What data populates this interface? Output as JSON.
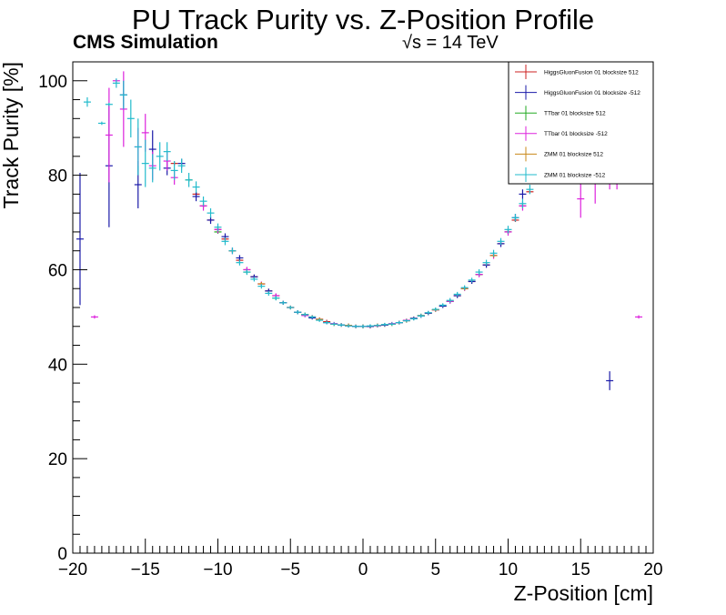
{
  "chart_data": {
    "type": "scatter",
    "title": "PU Track Purity vs. Z-Position Profile",
    "experiment_label": "CMS Simulation",
    "energy_label": "√s = 14 TeV",
    "xlabel": "Z-Position [cm]",
    "ylabel": "Track Purity [%]",
    "xlim": [
      -20,
      20
    ],
    "ylim": [
      0,
      104
    ],
    "xticks": [
      -20,
      -15,
      -10,
      -5,
      0,
      5,
      10,
      15,
      20
    ],
    "xtick_labels": [
      "−20",
      "−15",
      "−10",
      "−5",
      "0",
      "5",
      "10",
      "15",
      "20"
    ],
    "yticks": [
      0,
      20,
      40,
      60,
      80,
      100
    ],
    "ytick_labels": [
      "0",
      "20",
      "40",
      "60",
      "80",
      "100"
    ],
    "grid": false,
    "legend_position": "top-right",
    "series": [
      {
        "name": "HiggsGluonFusion 01 blocksize 512",
        "color": "#cc2222",
        "points": [
          [
            -13.0,
            82.5
          ],
          [
            -11.5,
            76.0
          ],
          [
            -11.0,
            73.5
          ],
          [
            -10.5,
            70.5
          ],
          [
            -10.0,
            68.5
          ],
          [
            -9.5,
            66.5
          ],
          [
            -9.0,
            64.0
          ],
          [
            -8.5,
            62.0
          ],
          [
            -8.0,
            60.0
          ],
          [
            -7.5,
            58.5
          ],
          [
            -7.0,
            57.0
          ],
          [
            -6.5,
            55.5
          ],
          [
            -6.0,
            54.5
          ],
          [
            -5.5,
            53.0
          ],
          [
            -5.0,
            52.0
          ],
          [
            -4.5,
            51.0
          ],
          [
            -4.0,
            50.5
          ],
          [
            -3.5,
            50.0
          ],
          [
            -3.0,
            49.5
          ],
          [
            -2.5,
            49.0
          ],
          [
            -2.0,
            48.5
          ],
          [
            -1.5,
            48.3
          ],
          [
            -1.0,
            48.2
          ],
          [
            -0.5,
            48.0
          ],
          [
            0.0,
            48.0
          ],
          [
            0.5,
            48.0
          ],
          [
            1.0,
            48.2
          ],
          [
            1.5,
            48.3
          ],
          [
            2.0,
            48.5
          ],
          [
            2.5,
            48.8
          ],
          [
            3.0,
            49.2
          ],
          [
            3.5,
            49.7
          ],
          [
            4.0,
            50.2
          ],
          [
            4.5,
            50.8
          ],
          [
            5.0,
            51.5
          ],
          [
            5.5,
            52.3
          ],
          [
            6.0,
            53.3
          ],
          [
            6.5,
            54.5
          ],
          [
            7.0,
            56.0
          ],
          [
            7.5,
            57.5
          ],
          [
            8.0,
            59.0
          ],
          [
            8.5,
            61.0
          ],
          [
            9.0,
            63.0
          ],
          [
            9.5,
            65.5
          ],
          [
            10.0,
            68.0
          ],
          [
            10.5,
            70.5
          ],
          [
            11.0,
            73.5
          ],
          [
            11.5,
            76.5
          ]
        ]
      },
      {
        "name": "HiggsGluonFusion 01 blocksize -512",
        "color": "#1a1aa8",
        "points": [
          [
            -19.5,
            66.5,
            14.0
          ],
          [
            -17.5,
            82.0,
            13.0
          ],
          [
            -16.5,
            97.0,
            3.0
          ],
          [
            -15.5,
            78.0,
            5.0
          ],
          [
            -14.5,
            85.5,
            4.0
          ],
          [
            -13.5,
            81.5,
            1.5
          ],
          [
            -12.5,
            82.5,
            1.0
          ],
          [
            -11.5,
            75.5,
            1.0
          ],
          [
            -10.5,
            70.5,
            0.8
          ],
          [
            -9.5,
            67.0,
            0.7
          ],
          [
            -8.5,
            62.5,
            0.6
          ],
          [
            -7.5,
            58.5,
            0.5
          ],
          [
            -6.5,
            55.5,
            0.5
          ],
          [
            -5.5,
            53.0,
            0.4
          ],
          [
            -4.5,
            51.0,
            0.4
          ],
          [
            -3.5,
            49.8,
            0.3
          ],
          [
            -2.5,
            48.8,
            0.3
          ],
          [
            -1.5,
            48.3,
            0.3
          ],
          [
            -0.5,
            48.0,
            0.3
          ],
          [
            0.5,
            48.0,
            0.3
          ],
          [
            1.5,
            48.3,
            0.3
          ],
          [
            2.5,
            48.8,
            0.3
          ],
          [
            3.5,
            49.7,
            0.3
          ],
          [
            4.5,
            50.8,
            0.4
          ],
          [
            5.5,
            52.3,
            0.4
          ],
          [
            6.5,
            54.5,
            0.5
          ],
          [
            7.5,
            57.5,
            0.5
          ],
          [
            8.5,
            61.0,
            0.6
          ],
          [
            9.5,
            65.5,
            0.7
          ],
          [
            10.5,
            71.0,
            0.8
          ],
          [
            11.0,
            76.0,
            1.0
          ],
          [
            17.0,
            36.5,
            2.0
          ]
        ]
      },
      {
        "name": "TTbar 01 blocksize 512",
        "color": "#22aa22",
        "points": [
          [
            -12.0,
            79.0
          ],
          [
            -10.0,
            68.0
          ],
          [
            -8.0,
            59.5
          ],
          [
            -6.0,
            54.0
          ],
          [
            -4.0,
            50.5
          ],
          [
            -2.0,
            48.5
          ],
          [
            0.0,
            48.0
          ],
          [
            2.0,
            48.5
          ],
          [
            4.0,
            50.3
          ],
          [
            6.0,
            53.3
          ],
          [
            8.0,
            59.0
          ],
          [
            10.0,
            68.0
          ]
        ]
      },
      {
        "name": "TTbar 01 blocksize -512",
        "color": "#dd22dd",
        "points": [
          [
            -18.5,
            50.0,
            0.0
          ],
          [
            -17.5,
            88.5,
            10.0
          ],
          [
            -17.0,
            100.0,
            0.0
          ],
          [
            -16.5,
            94.0,
            8.0
          ],
          [
            -15.5,
            86.0,
            4.0
          ],
          [
            -15.0,
            89.0,
            4.0
          ],
          [
            -14.5,
            82.0,
            3.0
          ],
          [
            -13.5,
            83.0,
            2.0
          ],
          [
            -13.0,
            79.5,
            1.5
          ],
          [
            -11.0,
            73.5,
            1.0
          ],
          [
            -10.0,
            68.5,
            0.8
          ],
          [
            -9.0,
            64.0,
            0.7
          ],
          [
            -8.0,
            60.0,
            0.6
          ],
          [
            -7.0,
            57.0,
            0.5
          ],
          [
            -6.0,
            54.5,
            0.5
          ],
          [
            -5.0,
            52.0,
            0.4
          ],
          [
            -4.0,
            50.3,
            0.4
          ],
          [
            -3.0,
            49.5,
            0.3
          ],
          [
            -2.0,
            48.6,
            0.3
          ],
          [
            -1.0,
            48.1,
            0.3
          ],
          [
            0.0,
            48.0,
            0.3
          ],
          [
            1.0,
            48.1,
            0.3
          ],
          [
            2.0,
            48.6,
            0.3
          ],
          [
            3.0,
            49.3,
            0.3
          ],
          [
            4.0,
            50.2,
            0.4
          ],
          [
            5.0,
            51.5,
            0.4
          ],
          [
            6.0,
            53.3,
            0.5
          ],
          [
            7.0,
            56.0,
            0.5
          ],
          [
            8.0,
            59.0,
            0.6
          ],
          [
            9.0,
            63.0,
            0.7
          ],
          [
            10.0,
            68.0,
            0.8
          ],
          [
            11.0,
            73.5,
            1.0
          ],
          [
            15.0,
            75.0,
            4.0
          ],
          [
            16.0,
            80.0,
            6.0
          ],
          [
            17.0,
            80.0,
            3.0
          ],
          [
            17.5,
            80.0,
            3.0
          ],
          [
            19.0,
            50.0,
            0.0
          ]
        ]
      },
      {
        "name": "ZMM 01 blocksize 512",
        "color": "#c8881a",
        "points": [
          [
            -9.0,
            64.0
          ],
          [
            -7.0,
            57.0
          ],
          [
            -5.0,
            52.0
          ],
          [
            -3.0,
            49.5
          ],
          [
            -1.0,
            48.2
          ],
          [
            1.0,
            48.2
          ],
          [
            3.0,
            49.2
          ],
          [
            5.0,
            51.5
          ],
          [
            7.0,
            56.0
          ],
          [
            9.0,
            63.0
          ]
        ]
      },
      {
        "name": "ZMM 01 blocksize -512",
        "color": "#22bbcc",
        "points": [
          [
            -19.0,
            95.5,
            1.0
          ],
          [
            -18.0,
            91.0,
            0.0
          ],
          [
            -17.5,
            95.0,
            0.0
          ],
          [
            -17.0,
            99.5,
            1.0
          ],
          [
            -16.5,
            97.0,
            3.0
          ],
          [
            -16.0,
            92.0,
            4.0
          ],
          [
            -15.5,
            86.0,
            6.0
          ],
          [
            -15.0,
            82.5,
            5.0
          ],
          [
            -14.5,
            81.5,
            3.0
          ],
          [
            -14.0,
            84.0,
            3.0
          ],
          [
            -13.5,
            85.0,
            2.0
          ],
          [
            -13.0,
            81.0,
            2.0
          ],
          [
            -12.5,
            82.0,
            1.5
          ],
          [
            -12.0,
            79.0,
            1.5
          ],
          [
            -11.5,
            77.5,
            1.2
          ],
          [
            -11.0,
            74.5,
            1.0
          ],
          [
            -10.5,
            72.0,
            1.0
          ],
          [
            -10.0,
            69.0,
            0.8
          ],
          [
            -9.5,
            66.0,
            0.8
          ],
          [
            -9.0,
            64.0,
            0.7
          ],
          [
            -8.5,
            61.5,
            0.6
          ],
          [
            -8.0,
            59.5,
            0.6
          ],
          [
            -7.5,
            58.0,
            0.5
          ],
          [
            -7.0,
            56.5,
            0.5
          ],
          [
            -6.5,
            55.0,
            0.5
          ],
          [
            -6.0,
            54.0,
            0.5
          ],
          [
            -5.5,
            53.0,
            0.4
          ],
          [
            -5.0,
            52.0,
            0.4
          ],
          [
            -4.5,
            51.0,
            0.4
          ],
          [
            -4.0,
            50.5,
            0.4
          ],
          [
            -3.5,
            50.0,
            0.3
          ],
          [
            -3.0,
            49.3,
            0.3
          ],
          [
            -2.5,
            48.8,
            0.3
          ],
          [
            -2.0,
            48.5,
            0.3
          ],
          [
            -1.5,
            48.3,
            0.3
          ],
          [
            -1.0,
            48.1,
            0.3
          ],
          [
            -0.5,
            48.0,
            0.3
          ],
          [
            0.0,
            48.0,
            0.3
          ],
          [
            0.5,
            48.1,
            0.3
          ],
          [
            1.0,
            48.2,
            0.3
          ],
          [
            1.5,
            48.4,
            0.3
          ],
          [
            2.0,
            48.5,
            0.3
          ],
          [
            2.5,
            48.8,
            0.3
          ],
          [
            3.0,
            49.2,
            0.3
          ],
          [
            3.5,
            49.6,
            0.3
          ],
          [
            4.0,
            50.2,
            0.4
          ],
          [
            4.5,
            50.9,
            0.4
          ],
          [
            5.0,
            51.6,
            0.4
          ],
          [
            5.5,
            52.5,
            0.4
          ],
          [
            6.0,
            53.5,
            0.5
          ],
          [
            6.5,
            54.8,
            0.5
          ],
          [
            7.0,
            56.2,
            0.5
          ],
          [
            7.5,
            57.8,
            0.5
          ],
          [
            8.0,
            59.5,
            0.6
          ],
          [
            8.5,
            61.5,
            0.6
          ],
          [
            9.0,
            63.5,
            0.7
          ],
          [
            9.5,
            66.0,
            0.7
          ],
          [
            10.0,
            68.5,
            0.8
          ],
          [
            10.5,
            71.0,
            0.8
          ],
          [
            11.0,
            74.0,
            1.0
          ],
          [
            11.5,
            77.0,
            1.0
          ]
        ]
      }
    ]
  }
}
